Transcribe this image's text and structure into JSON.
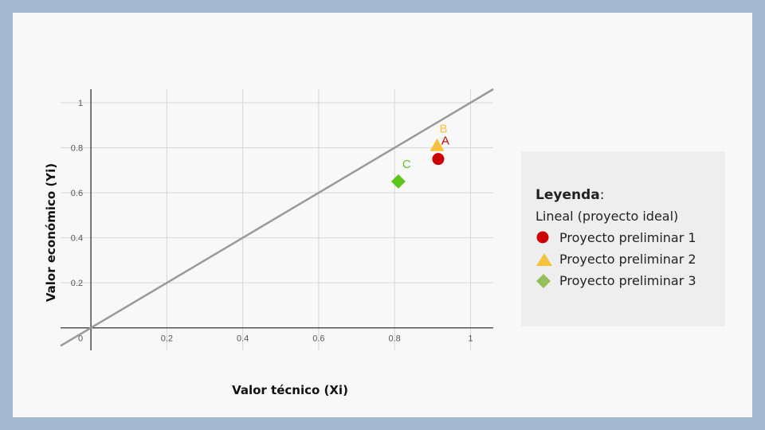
{
  "chart_data": {
    "type": "scatter",
    "xlabel": "Valor técnico (Xi)",
    "ylabel": "Valor económico (Yi)",
    "xlim": [
      -0.08,
      1.06
    ],
    "ylim": [
      -0.1,
      1.06
    ],
    "x_ticks": [
      "0",
      "0.2",
      "0.4",
      "0.6",
      "0.8",
      "1"
    ],
    "y_ticks": [
      "0.2",
      "0.4",
      "0.6",
      "0.8",
      "1"
    ],
    "grid": true,
    "reference_line": {
      "name": "Lineal (proyecto ideal)",
      "x": [
        -0.08,
        1.06
      ],
      "y": [
        -0.08,
        1.06
      ],
      "color": "#999999"
    },
    "series": [
      {
        "name": "Proyecto preliminar 1",
        "label": "A",
        "x": [
          0.915
        ],
        "y": [
          0.75
        ],
        "marker": "circle",
        "color": "#cc0000",
        "label_color": "#cc0000"
      },
      {
        "name": "Proyecto preliminar 2",
        "label": "B",
        "x": [
          0.912
        ],
        "y": [
          0.81
        ],
        "marker": "triangle",
        "color": "#f6c23b",
        "label_color": "#f6c23b"
      },
      {
        "name": "Proyecto preliminar 3",
        "label": "C",
        "x": [
          0.81
        ],
        "y": [
          0.65
        ],
        "marker": "diamond",
        "color": "#5ec51b",
        "label_color": "#5ec51b"
      }
    ]
  },
  "legend": {
    "title": "Leyenda",
    "colon": ":",
    "items": [
      {
        "label": "Lineal (proyecto ideal)",
        "marker": "none"
      },
      {
        "label": "Proyecto preliminar 1",
        "marker": "circle",
        "color": "#cc0000"
      },
      {
        "label": "Proyecto preliminar 2",
        "marker": "triangle",
        "color": "#f6c23b"
      },
      {
        "label": "Proyecto preliminar 3",
        "marker": "diamond",
        "color": "#93c05a"
      }
    ]
  }
}
